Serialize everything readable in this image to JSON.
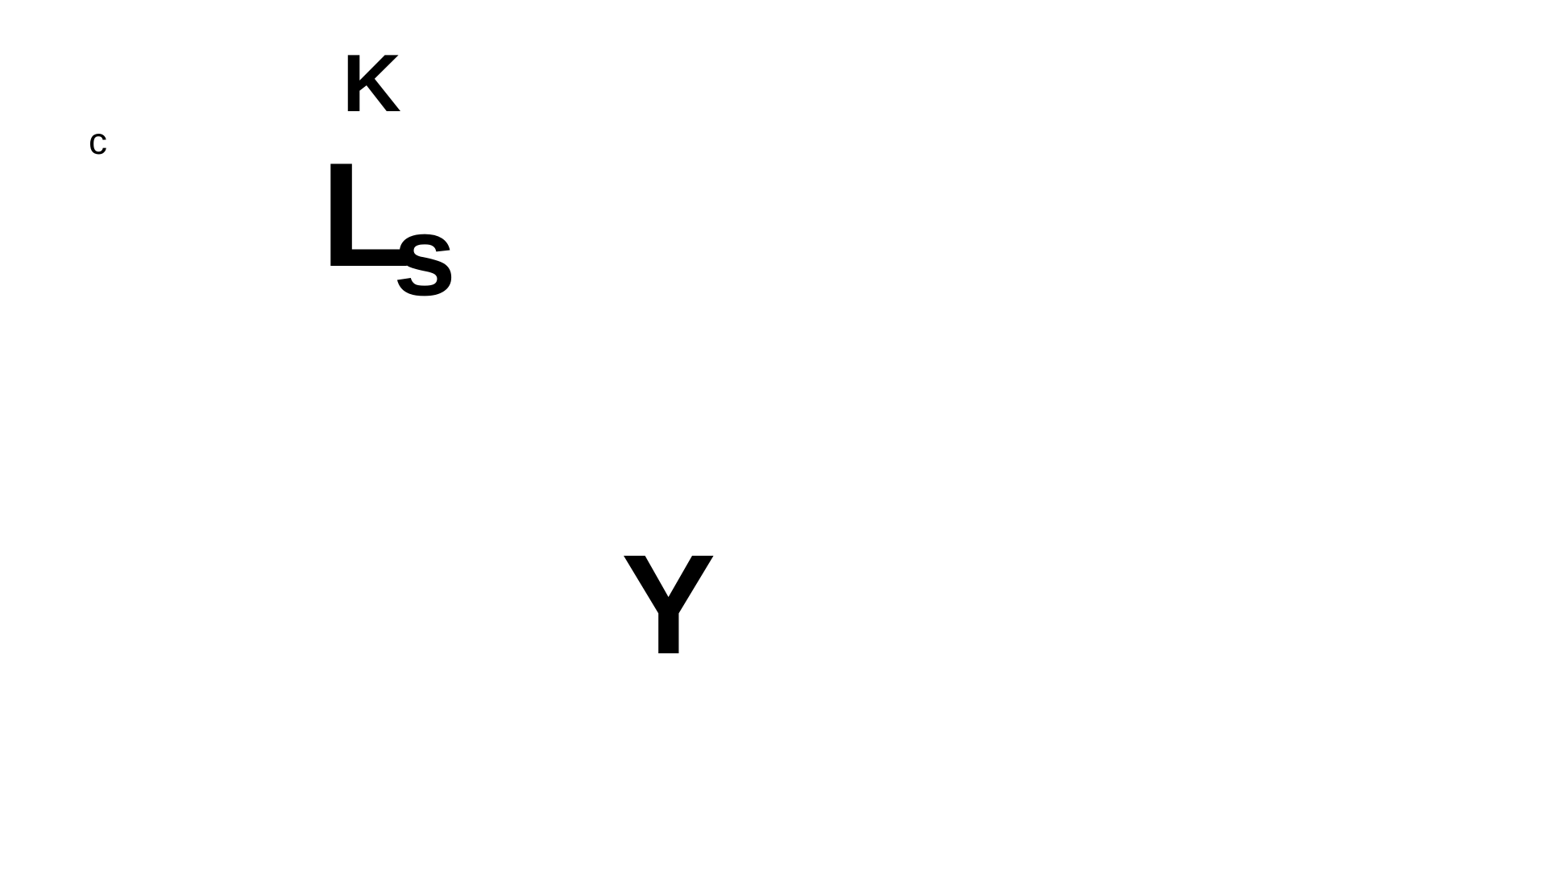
{
  "letters": {
    "k": "K",
    "c": "c",
    "l": "L",
    "s": "s",
    "y": "Y"
  },
  "colors": {
    "background": "#ffffff",
    "text": "#000000"
  }
}
